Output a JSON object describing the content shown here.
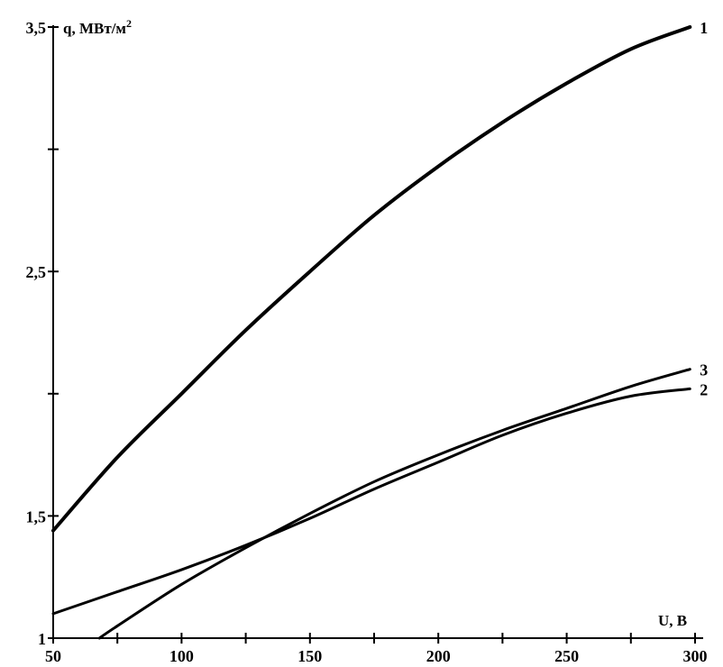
{
  "chart_data": {
    "type": "line",
    "xlabel": "U, В",
    "ylabel_main": "q, МВт/м",
    "ylabel_sup": "2",
    "xlim": [
      50,
      300
    ],
    "ylim": [
      1,
      3.5
    ],
    "x_ticks": [
      {
        "value": 50,
        "label": "50"
      },
      {
        "value": 75,
        "label": ""
      },
      {
        "value": 100,
        "label": "100"
      },
      {
        "value": 125,
        "label": ""
      },
      {
        "value": 150,
        "label": "150"
      },
      {
        "value": 175,
        "label": ""
      },
      {
        "value": 200,
        "label": "200"
      },
      {
        "value": 225,
        "label": ""
      },
      {
        "value": 250,
        "label": "250"
      },
      {
        "value": 275,
        "label": ""
      },
      {
        "value": 300,
        "label": "300"
      }
    ],
    "y_ticks": [
      {
        "value": 1,
        "label": "1"
      },
      {
        "value": 1.5,
        "label": "1,5"
      },
      {
        "value": 2,
        "label": ""
      },
      {
        "value": 2.5,
        "label": "2,5"
      },
      {
        "value": 3,
        "label": ""
      },
      {
        "value": 3.5,
        "label": "3,5"
      }
    ],
    "grid": false,
    "series": [
      {
        "name": "1",
        "stroke_width": 4,
        "x": [
          50,
          75,
          100,
          125,
          150,
          175,
          200,
          225,
          250,
          275,
          298
        ],
        "y": [
          1.44,
          1.74,
          2.0,
          2.26,
          2.5,
          2.73,
          2.93,
          3.11,
          3.27,
          3.41,
          3.5
        ]
      },
      {
        "name": "2",
        "stroke_width": 3,
        "x": [
          50,
          75,
          100,
          125,
          150,
          175,
          200,
          225,
          250,
          275,
          298
        ],
        "y": [
          1.1,
          1.19,
          1.28,
          1.38,
          1.49,
          1.61,
          1.72,
          1.83,
          1.92,
          1.99,
          2.02
        ]
      },
      {
        "name": "3",
        "stroke_width": 3,
        "x": [
          68,
          75,
          100,
          125,
          150,
          175,
          200,
          225,
          250,
          275,
          298
        ],
        "y": [
          1.0,
          1.05,
          1.22,
          1.37,
          1.51,
          1.64,
          1.75,
          1.85,
          1.94,
          2.03,
          2.1
        ]
      }
    ]
  }
}
